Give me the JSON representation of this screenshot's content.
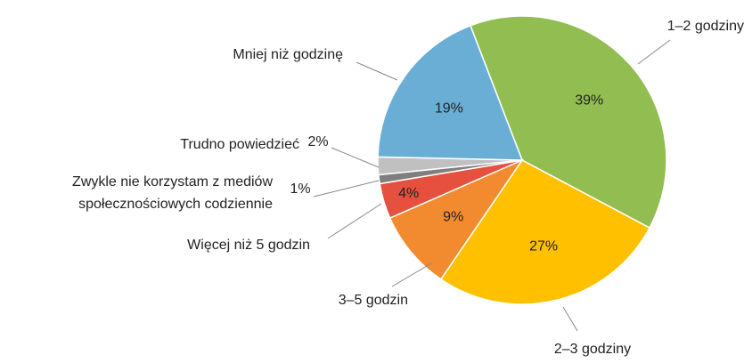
{
  "chart_data": {
    "type": "pie",
    "categories": [
      "1–2 godziny",
      "2–3 godziny",
      "3–5 godzin",
      "Więcej niż 5 godzin",
      "Zwykle nie korzystam z mediów społecznościowych codziennie",
      "Trudno powiedzieć",
      "Mniej niż godzinę"
    ],
    "values": [
      39,
      27,
      9,
      4,
      1,
      2,
      19
    ],
    "value_labels": [
      "39%",
      "27%",
      "9%",
      "4%",
      "1%",
      "2%",
      "19%"
    ],
    "colors": [
      "#92bd50",
      "#ffc000",
      "#f28a30",
      "#e5503f",
      "#7f7f7f",
      "#c0c0c0",
      "#6aaed6"
    ]
  }
}
